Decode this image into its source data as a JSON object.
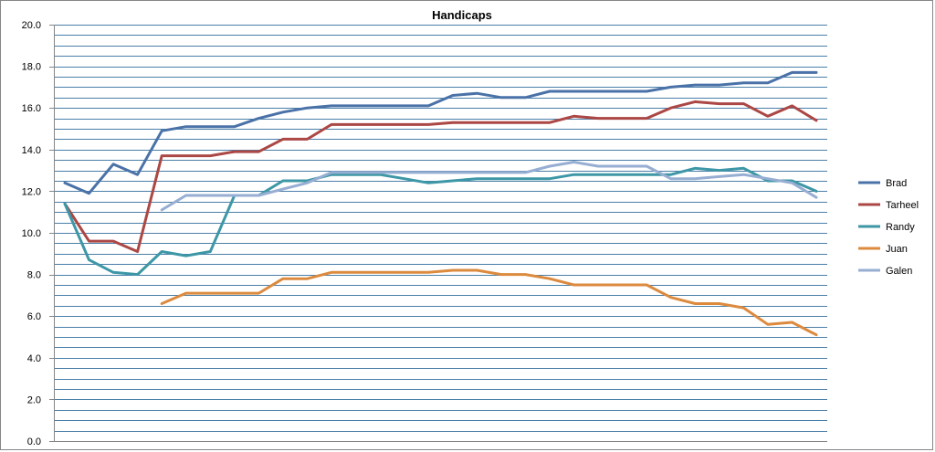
{
  "chart_data": {
    "type": "line",
    "title": "Handicaps",
    "xlabel": "",
    "ylabel": "",
    "ylim": [
      0,
      20
    ],
    "ytick_step": 2,
    "ytick_labels": [
      "0.0",
      "2.0",
      "4.0",
      "6.0",
      "8.0",
      "10.0",
      "12.0",
      "14.0",
      "16.0",
      "18.0",
      "20.0"
    ],
    "minor_grid_step": 0.5,
    "grid": true,
    "legend": "right",
    "num_points": 32,
    "series": [
      {
        "name": "Brad",
        "color": "#4a72a8",
        "values": [
          12.4,
          11.9,
          13.3,
          12.8,
          14.9,
          15.1,
          15.1,
          15.1,
          15.5,
          15.8,
          16.0,
          16.1,
          16.1,
          16.1,
          16.1,
          16.1,
          16.6,
          16.7,
          16.5,
          16.5,
          16.8,
          16.8,
          16.8,
          16.8,
          16.8,
          17.0,
          17.1,
          17.1,
          17.2,
          17.2,
          17.7,
          17.7
        ]
      },
      {
        "name": "Tarheel",
        "color": "#ab4744",
        "values": [
          11.4,
          9.6,
          9.6,
          9.1,
          13.7,
          13.7,
          13.7,
          13.9,
          13.9,
          14.5,
          14.5,
          15.2,
          15.2,
          15.2,
          15.2,
          15.2,
          15.3,
          15.3,
          15.3,
          15.3,
          15.3,
          15.6,
          15.5,
          15.5,
          15.5,
          16.0,
          16.3,
          16.2,
          16.2,
          15.6,
          16.1,
          15.4
        ]
      },
      {
        "name": "Randy",
        "color": "#3e97a6",
        "values": [
          11.4,
          8.7,
          8.1,
          8.0,
          9.1,
          8.9,
          9.1,
          11.8,
          11.8,
          12.5,
          12.5,
          12.8,
          12.8,
          12.8,
          12.6,
          12.4,
          12.5,
          12.6,
          12.6,
          12.6,
          12.6,
          12.8,
          12.8,
          12.8,
          12.8,
          12.8,
          13.1,
          13.0,
          13.1,
          12.5,
          12.5,
          12.0
        ]
      },
      {
        "name": "Juan",
        "color": "#dc8a3e",
        "values": [
          null,
          null,
          null,
          null,
          6.6,
          7.1,
          7.1,
          7.1,
          7.1,
          7.8,
          7.8,
          8.1,
          8.1,
          8.1,
          8.1,
          8.1,
          8.2,
          8.2,
          8.0,
          8.0,
          7.8,
          7.5,
          7.5,
          7.5,
          7.5,
          6.9,
          6.6,
          6.6,
          6.4,
          5.6,
          5.7,
          5.1
        ]
      },
      {
        "name": "Galen",
        "color": "#97aed3",
        "values": [
          null,
          null,
          null,
          null,
          11.1,
          11.8,
          11.8,
          11.8,
          11.8,
          12.1,
          12.4,
          12.9,
          12.9,
          12.9,
          12.9,
          12.9,
          12.9,
          12.9,
          12.9,
          12.9,
          13.2,
          13.4,
          13.2,
          13.2,
          13.2,
          12.6,
          12.6,
          12.7,
          12.8,
          12.6,
          12.4,
          11.7
        ]
      }
    ]
  }
}
